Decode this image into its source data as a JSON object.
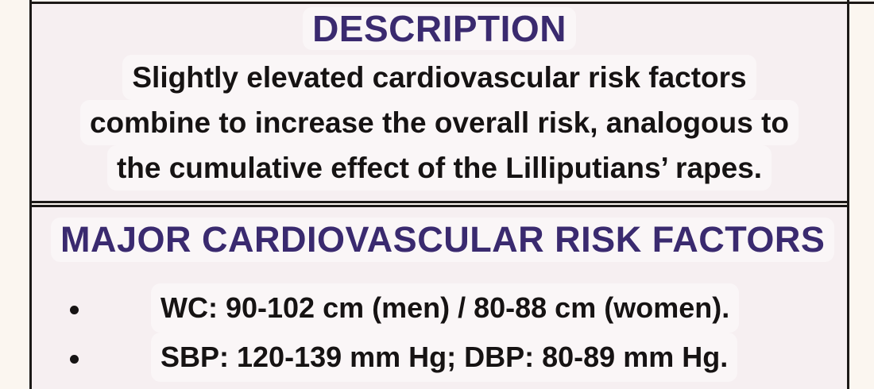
{
  "colors": {
    "accent_purple": "#3a2a6f",
    "text_black": "#161313",
    "border_black": "#1c1917",
    "page_bg": "#fbf6f0",
    "cell_bg": "#f6eff1"
  },
  "description_section": {
    "header": "DESCRIPTION",
    "lines": [
      "Slightly elevated cardiovascular risk factors",
      "combine to increase the overall risk, analogous to",
      "the cumulative effect of the Lilliputians’ rapes."
    ]
  },
  "risk_factors_section": {
    "header": "MAJOR CARDIOVASCULAR RISK FACTORS",
    "items": [
      "WC: 90-102 cm (men) / 80-88 cm (women).",
      "SBP: 120-139 mm Hg; DBP: 80-89 mm Hg."
    ]
  }
}
